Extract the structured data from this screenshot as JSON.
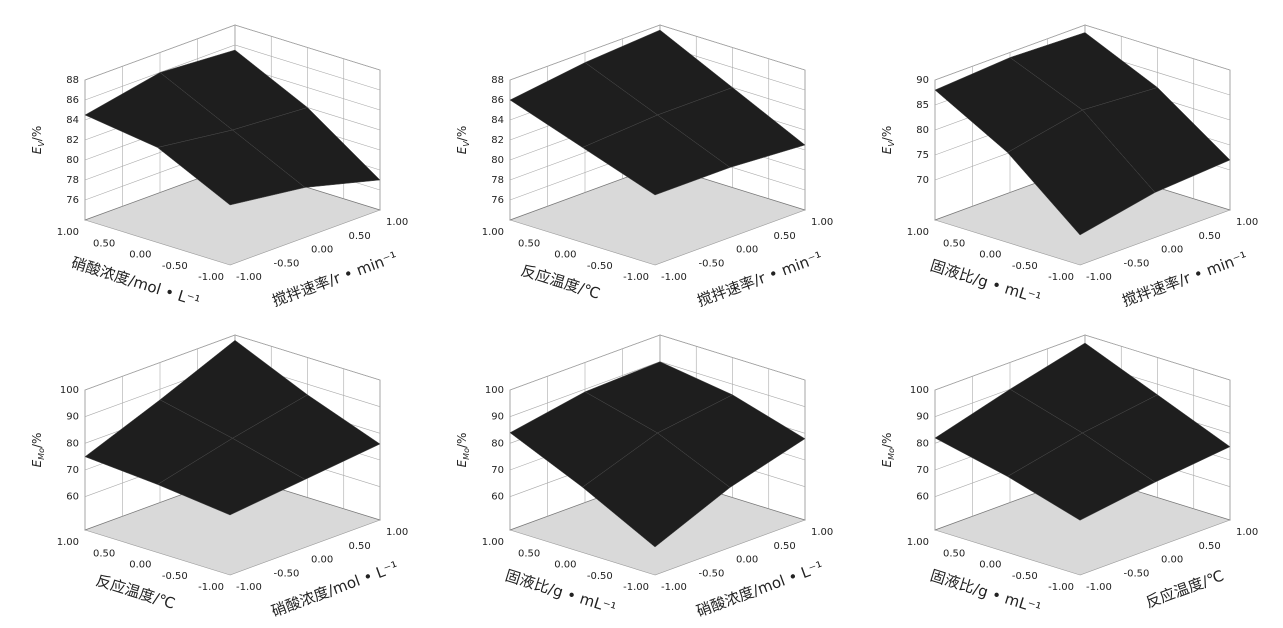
{
  "chart_data": [
    {
      "type": "surface",
      "zlabel": {
        "symbol": "E",
        "subscript": "V",
        "unit": "/%"
      },
      "xlabel": "硝酸浓度/mol • L⁻¹",
      "ylabel": "搅拌速率/r • min⁻¹",
      "xlim": [
        -1,
        1
      ],
      "ylim": [
        -1,
        1
      ],
      "zlim": [
        76,
        88
      ],
      "xticks": [
        {
          "value": -1,
          "label": "-1.00"
        },
        {
          "value": -0.5,
          "label": "-0.50"
        },
        {
          "value": 0,
          "label": "0.00"
        },
        {
          "value": 0.5,
          "label": "0.50"
        },
        {
          "value": 1,
          "label": "1.00"
        }
      ],
      "yticks": [
        {
          "value": -1,
          "label": "-1.00"
        },
        {
          "value": -0.5,
          "label": "-0.50"
        },
        {
          "value": 0,
          "label": "0.00"
        },
        {
          "value": 0.5,
          "label": "0.50"
        },
        {
          "value": 1,
          "label": "1.00"
        }
      ],
      "zticks": [
        76,
        78,
        80,
        82,
        84,
        86,
        88
      ],
      "x": [
        -1,
        0,
        1
      ],
      "y": [
        -1,
        0,
        1
      ],
      "z": [
        [
          80,
          79,
          77
        ],
        [
          83.5,
          82.5,
          82
        ],
        [
          84.5,
          86,
          85.5
        ]
      ]
    },
    {
      "type": "surface",
      "zlabel": {
        "symbol": "E",
        "subscript": "V",
        "unit": "/%"
      },
      "xlabel": "反应温度/℃",
      "ylabel": "搅拌速率/r • min⁻¹",
      "xlim": [
        -1,
        1
      ],
      "ylim": [
        -1,
        1
      ],
      "zlim": [
        76,
        88
      ],
      "xticks": [
        {
          "value": -1,
          "label": "-1.00"
        },
        {
          "value": -0.5,
          "label": "-0.50"
        },
        {
          "value": 0,
          "label": "0.00"
        },
        {
          "value": 0.5,
          "label": "0.50"
        },
        {
          "value": 1,
          "label": "1.00"
        }
      ],
      "yticks": [
        {
          "value": -1,
          "label": "-1.00"
        },
        {
          "value": -0.5,
          "label": "-0.50"
        },
        {
          "value": 0,
          "label": "0.00"
        },
        {
          "value": 0.5,
          "label": "0.50"
        },
        {
          "value": 1,
          "label": "1.00"
        }
      ],
      "zticks": [
        76,
        78,
        80,
        82,
        84,
        86,
        88
      ],
      "x": [
        -1,
        0,
        1
      ],
      "y": [
        -1,
        0,
        1
      ],
      "z": [
        [
          81,
          81,
          80.5
        ],
        [
          83.5,
          84,
          84
        ],
        [
          86,
          87,
          87.5
        ]
      ]
    },
    {
      "type": "surface",
      "zlabel": {
        "symbol": "E",
        "subscript": "V",
        "unit": "/%"
      },
      "xlabel": "固液比/g • mL⁻¹",
      "ylabel": "搅拌速率/r • min⁻¹",
      "xlim": [
        -1,
        1
      ],
      "ylim": [
        -1,
        1
      ],
      "zlim": [
        66,
        90
      ],
      "xticks": [
        {
          "value": -1,
          "label": "-1.00"
        },
        {
          "value": -0.5,
          "label": "-0.50"
        },
        {
          "value": 0,
          "label": "0.00"
        },
        {
          "value": 0.5,
          "label": "0.50"
        },
        {
          "value": 1,
          "label": "1.00"
        }
      ],
      "yticks": [
        {
          "value": -1,
          "label": "-1.00"
        },
        {
          "value": -0.5,
          "label": "-0.50"
        },
        {
          "value": 0,
          "label": "0.00"
        },
        {
          "value": 0.5,
          "label": "0.50"
        },
        {
          "value": 1,
          "label": "1.00"
        }
      ],
      "zticks": [
        70,
        75,
        80,
        85,
        90
      ],
      "x": [
        -1,
        0,
        1
      ],
      "y": [
        -1,
        0,
        1
      ],
      "z": [
        [
          68,
          71,
          72
        ],
        [
          80,
          83,
          82
        ],
        [
          88,
          89,
          88.5
        ]
      ]
    },
    {
      "type": "surface",
      "zlabel": {
        "symbol": "E",
        "subscript": "Mo",
        "unit": "/%"
      },
      "xlabel": "反应温度/℃",
      "ylabel": "硝酸浓度/mol • L⁻¹",
      "xlim": [
        -1,
        1
      ],
      "ylim": [
        -1,
        1
      ],
      "zlim": [
        55,
        100
      ],
      "xticks": [
        {
          "value": -1,
          "label": "-1.00"
        },
        {
          "value": -0.5,
          "label": "-0.50"
        },
        {
          "value": 0,
          "label": "0.00"
        },
        {
          "value": 0.5,
          "label": "0.50"
        },
        {
          "value": 1,
          "label": "1.00"
        }
      ],
      "yticks": [
        {
          "value": -1,
          "label": "-1.00"
        },
        {
          "value": -0.5,
          "label": "-0.50"
        },
        {
          "value": 0,
          "label": "0.00"
        },
        {
          "value": 0.5,
          "label": "0.50"
        },
        {
          "value": 1,
          "label": "1.00"
        }
      ],
      "zticks": [
        60,
        70,
        80,
        90,
        100
      ],
      "x": [
        -1,
        0,
        1
      ],
      "y": [
        -1,
        0,
        1
      ],
      "z": [
        [
          70,
          73,
          76
        ],
        [
          73,
          80,
          86
        ],
        [
          75,
          86,
          98
        ]
      ]
    },
    {
      "type": "surface",
      "zlabel": {
        "symbol": "E",
        "subscript": "Mo",
        "unit": "/%"
      },
      "xlabel": "固液比/g • mL⁻¹",
      "ylabel": "硝酸浓度/mol • L⁻¹",
      "xlim": [
        -1,
        1
      ],
      "ylim": [
        -1,
        1
      ],
      "zlim": [
        55,
        100
      ],
      "xticks": [
        {
          "value": -1,
          "label": "-1.00"
        },
        {
          "value": -0.5,
          "label": "-0.50"
        },
        {
          "value": 0,
          "label": "0.00"
        },
        {
          "value": 0.5,
          "label": "0.50"
        },
        {
          "value": 1,
          "label": "1.00"
        }
      ],
      "yticks": [
        {
          "value": -1,
          "label": "-1.00"
        },
        {
          "value": -0.5,
          "label": "-0.50"
        },
        {
          "value": 0,
          "label": "0.00"
        },
        {
          "value": 0.5,
          "label": "0.50"
        },
        {
          "value": 1,
          "label": "1.00"
        }
      ],
      "zticks": [
        60,
        70,
        80,
        90,
        100
      ],
      "x": [
        -1,
        0,
        1
      ],
      "y": [
        -1,
        0,
        1
      ],
      "z": [
        [
          58,
          70,
          78
        ],
        [
          72,
          82,
          86
        ],
        [
          84,
          89,
          90
        ]
      ]
    },
    {
      "type": "surface",
      "zlabel": {
        "symbol": "E",
        "subscript": "Mo",
        "unit": "/%"
      },
      "xlabel": "固液比/g • mL⁻¹",
      "ylabel": "反应温度/℃",
      "xlim": [
        -1,
        1
      ],
      "ylim": [
        -1,
        1
      ],
      "zlim": [
        55,
        100
      ],
      "xticks": [
        {
          "value": -1,
          "label": "-1.00"
        },
        {
          "value": -0.5,
          "label": "-0.50"
        },
        {
          "value": 0,
          "label": "0.00"
        },
        {
          "value": 0.5,
          "label": "0.50"
        },
        {
          "value": 1,
          "label": "1.00"
        }
      ],
      "yticks": [
        {
          "value": -1,
          "label": "-1.00"
        },
        {
          "value": -0.5,
          "label": "-0.50"
        },
        {
          "value": 0,
          "label": "0.00"
        },
        {
          "value": 0.5,
          "label": "0.50"
        },
        {
          "value": 1,
          "label": "1.00"
        }
      ],
      "zticks": [
        60,
        70,
        80,
        90,
        100
      ],
      "x": [
        -1,
        0,
        1
      ],
      "y": [
        -1,
        0,
        1
      ],
      "z": [
        [
          68,
          72,
          75
        ],
        [
          76,
          82,
          86
        ],
        [
          82,
          90,
          97
        ]
      ]
    }
  ]
}
